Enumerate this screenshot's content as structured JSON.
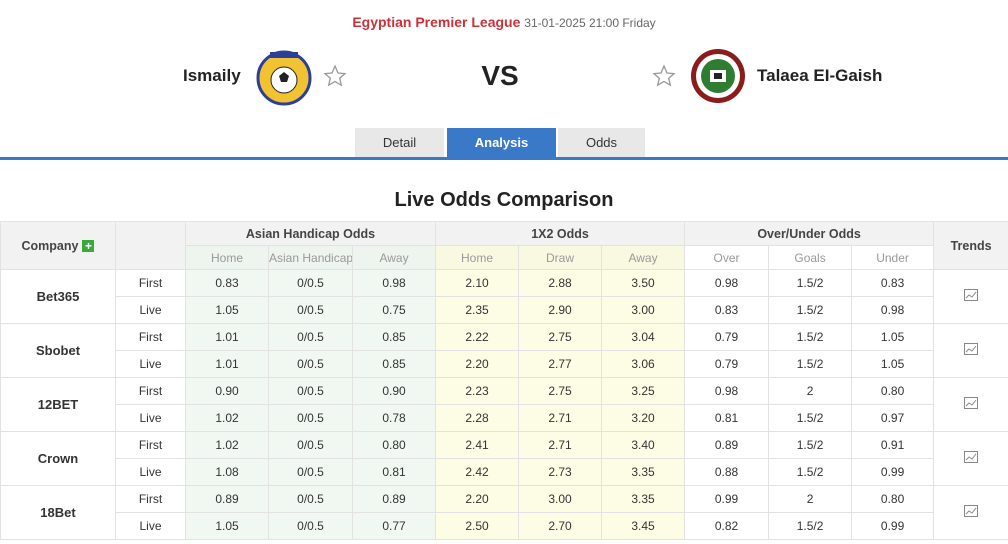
{
  "header": {
    "league": "Egyptian Premier League",
    "datetime": "31-01-2025 21:00 Friday",
    "home_team": "Ismaily",
    "vs": "VS",
    "away_team": "Talaea EI-Gaish"
  },
  "tabs": [
    "Detail",
    "Analysis",
    "Odds"
  ],
  "title": "Live Odds Comparison",
  "table": {
    "company_header": "Company",
    "groups": [
      "Asian Handicap Odds",
      "1X2 Odds",
      "Over/Under Odds"
    ],
    "trends_header": "Trends",
    "subheaders": [
      "Home",
      "Asian Handicap",
      "Away",
      "Home",
      "Draw",
      "Away",
      "Over",
      "Goals",
      "Under"
    ],
    "rows": [
      {
        "company": "Bet365",
        "lines": [
          {
            "label": "First",
            "values": [
              "0.83",
              "0/0.5",
              "0.98",
              "2.10",
              "2.88",
              "3.50",
              "0.98",
              "1.5/2",
              "0.83"
            ]
          },
          {
            "label": "Live",
            "values": [
              "1.05",
              "0/0.5",
              "0.75",
              "2.35",
              "2.90",
              "3.00",
              "0.83",
              "1.5/2",
              "0.98"
            ]
          }
        ]
      },
      {
        "company": "Sbobet",
        "lines": [
          {
            "label": "First",
            "values": [
              "1.01",
              "0/0.5",
              "0.85",
              "2.22",
              "2.75",
              "3.04",
              "0.79",
              "1.5/2",
              "1.05"
            ]
          },
          {
            "label": "Live",
            "values": [
              "1.01",
              "0/0.5",
              "0.85",
              "2.20",
              "2.77",
              "3.06",
              "0.79",
              "1.5/2",
              "1.05"
            ]
          }
        ]
      },
      {
        "company": "12BET",
        "lines": [
          {
            "label": "First",
            "values": [
              "0.90",
              "0/0.5",
              "0.90",
              "2.23",
              "2.75",
              "3.25",
              "0.98",
              "2",
              "0.80"
            ]
          },
          {
            "label": "Live",
            "values": [
              "1.02",
              "0/0.5",
              "0.78",
              "2.28",
              "2.71",
              "3.20",
              "0.81",
              "1.5/2",
              "0.97"
            ]
          }
        ]
      },
      {
        "company": "Crown",
        "lines": [
          {
            "label": "First",
            "values": [
              "1.02",
              "0/0.5",
              "0.80",
              "2.41",
              "2.71",
              "3.40",
              "0.89",
              "1.5/2",
              "0.91"
            ]
          },
          {
            "label": "Live",
            "values": [
              "1.08",
              "0/0.5",
              "0.81",
              "2.42",
              "2.73",
              "3.35",
              "0.88",
              "1.5/2",
              "0.99"
            ]
          }
        ]
      },
      {
        "company": "18Bet",
        "lines": [
          {
            "label": "First",
            "values": [
              "0.89",
              "0/0.5",
              "0.89",
              "2.20",
              "3.00",
              "3.35",
              "0.99",
              "2",
              "0.80"
            ]
          },
          {
            "label": "Live",
            "values": [
              "1.05",
              "0/0.5",
              "0.77",
              "2.50",
              "2.70",
              "3.45",
              "0.82",
              "1.5/2",
              "0.99"
            ]
          }
        ]
      }
    ]
  }
}
